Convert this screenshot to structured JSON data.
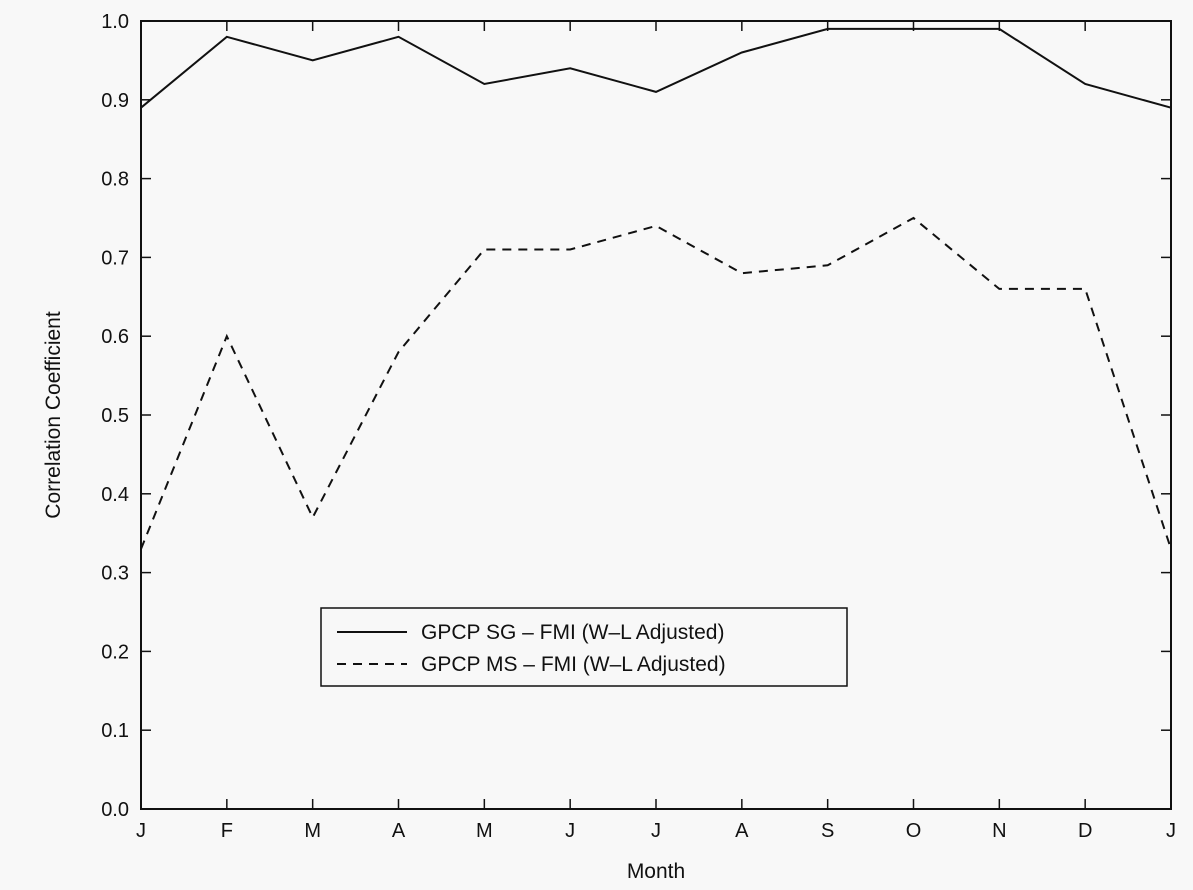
{
  "chart_data": {
    "type": "line",
    "title": "",
    "xlabel": "Month",
    "ylabel": "Correlation Coefficient",
    "categories": [
      "J",
      "F",
      "M",
      "A",
      "M",
      "J",
      "J",
      "A",
      "S",
      "O",
      "N",
      "D",
      "J"
    ],
    "ylim": [
      0.0,
      1.0
    ],
    "yticks": [
      "0.0",
      "0.1",
      "0.2",
      "0.3",
      "0.4",
      "0.5",
      "0.6",
      "0.7",
      "0.8",
      "0.9",
      "1.0"
    ],
    "grid": false,
    "legend_position": "lower-center",
    "series": [
      {
        "name": "GPCP SG – FMI (W–L Adjusted)",
        "style": "solid",
        "values": [
          0.89,
          0.98,
          0.95,
          0.98,
          0.92,
          0.94,
          0.91,
          0.96,
          0.99,
          0.99,
          0.99,
          0.92,
          0.89
        ]
      },
      {
        "name": "GPCP MS – FMI (W–L Adjusted)",
        "style": "dashed",
        "values": [
          0.33,
          0.6,
          0.37,
          0.58,
          0.71,
          0.71,
          0.74,
          0.68,
          0.69,
          0.75,
          0.66,
          0.66,
          0.33
        ]
      }
    ],
    "colors": {
      "line": "#111111",
      "background": "#f8f8f8"
    }
  }
}
